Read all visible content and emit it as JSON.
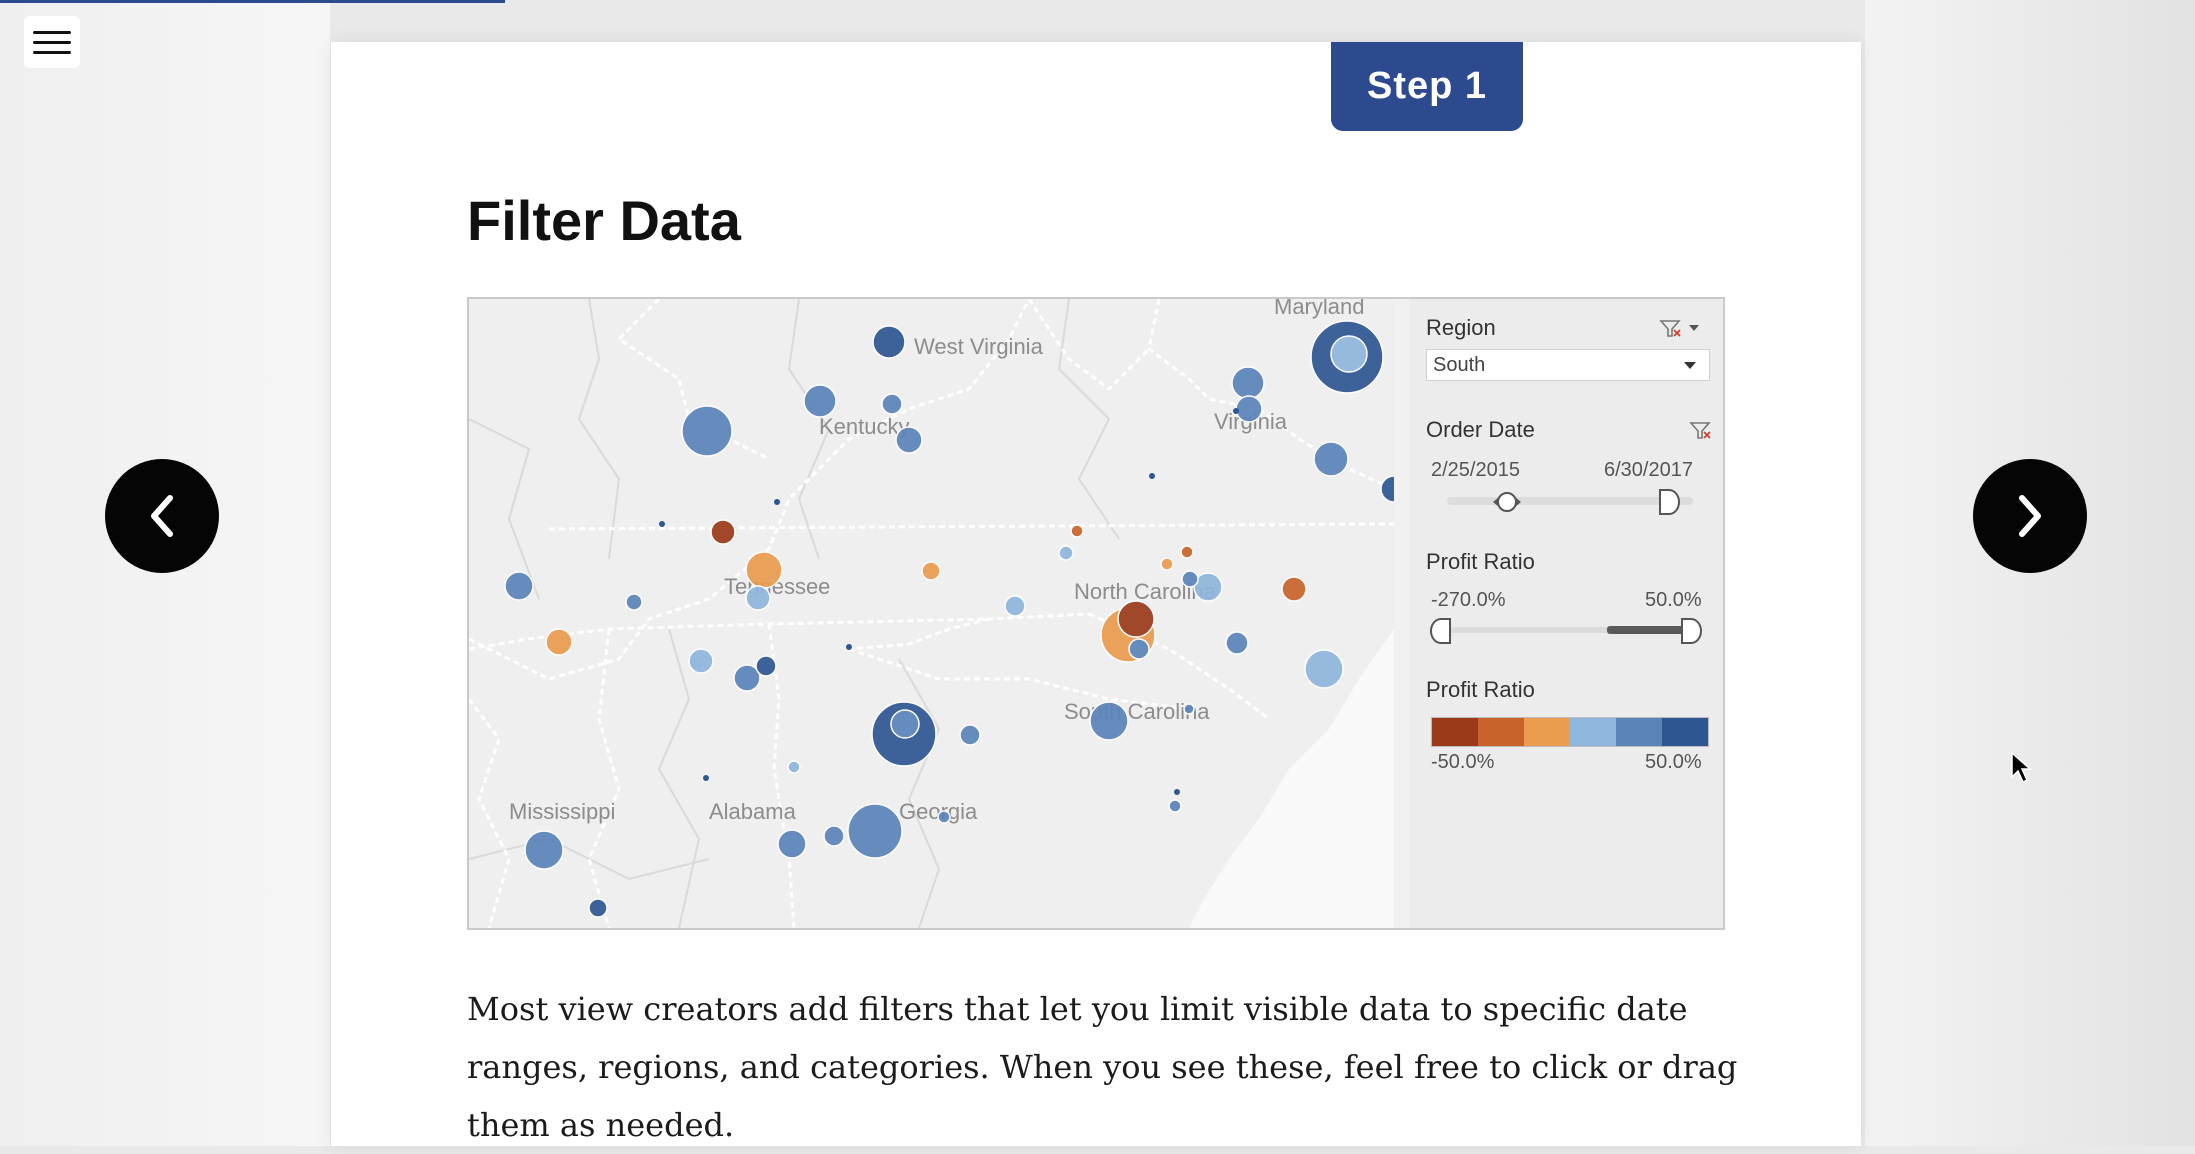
{
  "step": {
    "label": "Step 1"
  },
  "progress": {
    "fraction": 0.23
  },
  "page": {
    "title": "Filter Data",
    "body": "Most view creators add filters that let you limit visible data to specific date ranges, regions, and categories. When you see these, feel free to click or drag them as needed."
  },
  "map": {
    "state_labels": [
      "West Virginia",
      "Virginia",
      "Maryland",
      "Kentucky",
      "Tennessee",
      "North Carolina",
      "South Carolina",
      "Mississippi",
      "Alabama",
      "Georgia"
    ]
  },
  "filters": {
    "region": {
      "title": "Region",
      "value": "South"
    },
    "order_date": {
      "title": "Order Date",
      "start": "2/25/2015",
      "end": "6/30/2017"
    },
    "profit_ratio": {
      "title": "Profit Ratio",
      "min": "-270.0%",
      "max": "50.0%"
    },
    "legend": {
      "title": "Profit Ratio",
      "min": "-50.0%",
      "max": "50.0%"
    }
  },
  "colors": {
    "accent": "#2d4a8e",
    "legend": [
      "#9a3a19",
      "#c8642b",
      "#ea9c4f",
      "#8fb6dc",
      "#5b84b9",
      "#2e5792"
    ]
  },
  "icons": [
    "menu-icon",
    "chevron-left-icon",
    "chevron-right-icon",
    "clear-filter-icon",
    "dropdown-arrow-icon",
    "mouse-cursor-icon"
  ]
}
